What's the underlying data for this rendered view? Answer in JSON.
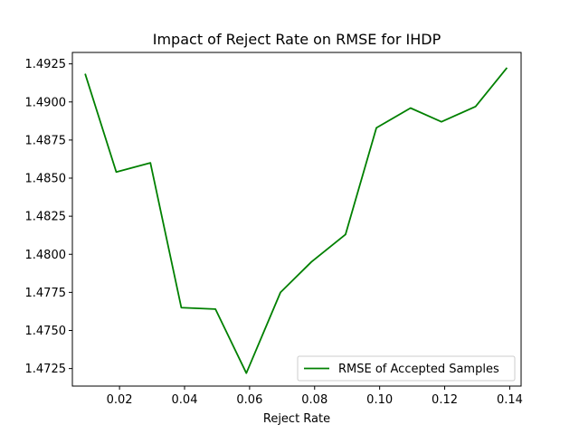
{
  "chart_data": {
    "type": "line",
    "title": "Impact of Reject Rate on RMSE for IHDP",
    "xlabel": "Reject Rate",
    "ylabel": "",
    "xlim": [
      0.0055,
      0.1435
    ],
    "ylim": [
      1.47135,
      1.49325
    ],
    "x_ticks": [
      0.02,
      0.04,
      0.06,
      0.08,
      0.1,
      0.12,
      0.14
    ],
    "x_tick_labels": [
      "0.02",
      "0.04",
      "0.06",
      "0.08",
      "0.10",
      "0.12",
      "0.14"
    ],
    "y_ticks": [
      1.4725,
      1.475,
      1.4775,
      1.48,
      1.4825,
      1.485,
      1.4875,
      1.49,
      1.4925
    ],
    "y_tick_labels": [
      "1.4725",
      "1.4750",
      "1.4775",
      "1.4800",
      "1.4825",
      "1.4850",
      "1.4875",
      "1.4900",
      "1.4925"
    ],
    "grid": false,
    "legend_position": "lower-right",
    "series": [
      {
        "name": "RMSE of Accepted Samples",
        "color": "#008000",
        "x": [
          0.0095,
          0.019,
          0.0295,
          0.039,
          0.0495,
          0.059,
          0.0695,
          0.079,
          0.0895,
          0.099,
          0.1095,
          0.119,
          0.1295,
          0.139
        ],
        "y": [
          1.4918,
          1.4854,
          1.486,
          1.4765,
          1.4764,
          1.4722,
          1.4775,
          1.4795,
          1.4813,
          1.4883,
          1.4896,
          1.4887,
          1.4897,
          1.4922
        ]
      }
    ]
  }
}
